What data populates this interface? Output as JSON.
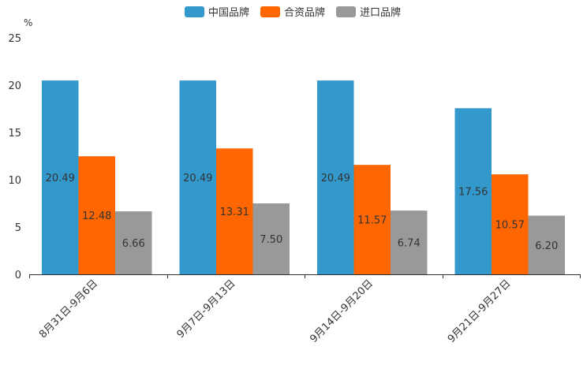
{
  "chart_data": {
    "type": "bar",
    "unit_label": "%",
    "categories": [
      "8月31日-9月6日",
      "9月7日-9月13日",
      "9月14日-9月20日",
      "9月21日-9月27日"
    ],
    "series": [
      {
        "name": "中国品牌",
        "color": "#3398CC",
        "values": [
          20.49,
          20.49,
          20.49,
          17.56
        ],
        "labels": [
          "20.49",
          "20.49",
          "20.49",
          "17.56"
        ]
      },
      {
        "name": "合资品牌",
        "color": "#FF6600",
        "values": [
          12.48,
          13.31,
          11.57,
          10.57
        ],
        "labels": [
          "12.48",
          "13.31",
          "11.57",
          "10.57"
        ]
      },
      {
        "name": "进口品牌",
        "color": "#999999",
        "values": [
          6.66,
          7.5,
          6.74,
          6.2
        ],
        "labels": [
          "6.66",
          "7.50",
          "6.74",
          "6.20"
        ]
      }
    ],
    "yticks": [
      "0",
      "5",
      "10",
      "15",
      "20",
      "25"
    ],
    "ylim": [
      0,
      25
    ],
    "legend_position": "top-center",
    "grid": false
  }
}
